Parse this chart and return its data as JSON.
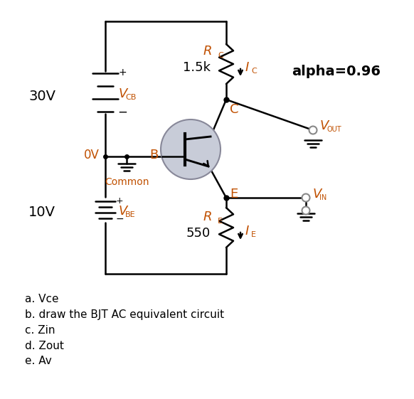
{
  "bg_color": "#ffffff",
  "line_color": "#000000",
  "orange_color": "#c05000",
  "gray_color": "#888888",
  "transistor_fill": "#c8ccd8",
  "transistor_edge": "#888899",
  "questions": [
    "a. Vce",
    "b. draw the BJT AC equivalent circuit",
    "c. Zin",
    "d. Zout",
    "e. Av"
  ],
  "alpha_text": "alpha=0.96"
}
